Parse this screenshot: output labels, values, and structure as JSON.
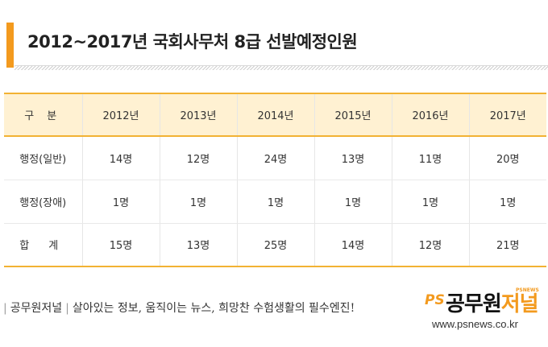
{
  "title": "2012~2017년 국회사무처 8급 선발예정인원",
  "table": {
    "headers": [
      "구 분",
      "2012년",
      "2013년",
      "2014년",
      "2015년",
      "2016년",
      "2017년"
    ],
    "rows": [
      {
        "label": "행정(일반)",
        "values": [
          "14명",
          "12명",
          "24명",
          "13명",
          "11명",
          "20명"
        ]
      },
      {
        "label": "행정(장애)",
        "values": [
          "1명",
          "1명",
          "1명",
          "1명",
          "1명",
          "1명"
        ]
      },
      {
        "label": "합 계",
        "values": [
          "15명",
          "13명",
          "25명",
          "14명",
          "12명",
          "21명"
        ]
      }
    ]
  },
  "footer": {
    "brand": "공무원저널",
    "slogan": "살아있는 정보, 움직이는 뉴스, 희망찬 수험생활의 필수엔진!",
    "logo_ps": "PS",
    "logo_name_a": "공무원",
    "logo_name_b": "저널",
    "logo_small": "PSNEWS",
    "url": "www.psnews.co.kr"
  },
  "colors": {
    "accent": "#f39a1e",
    "header_bg": "#fff1d2",
    "rule": "#f2b233"
  }
}
